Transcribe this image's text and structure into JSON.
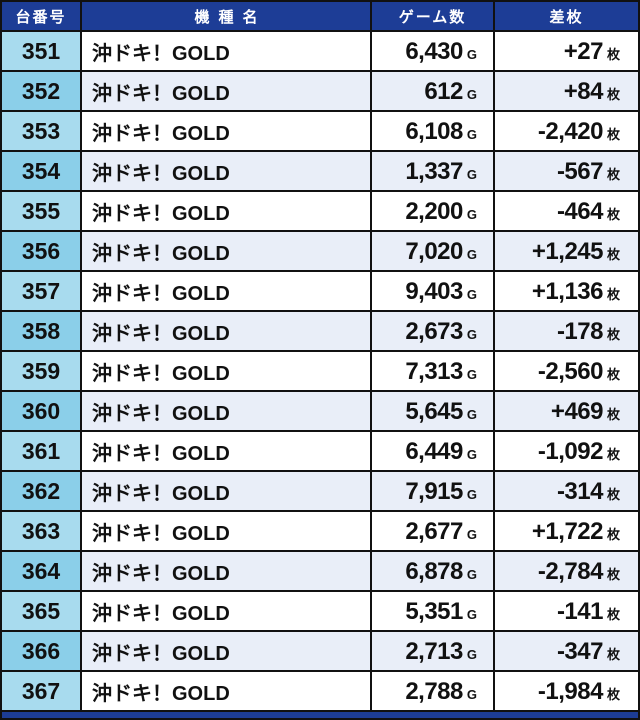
{
  "table": {
    "headers": {
      "machine_number": "台番号",
      "model_name": "機種名",
      "game_count": "ゲーム数",
      "diff_count": "差枚"
    },
    "units": {
      "game": "G",
      "diff": "枚"
    },
    "rows": [
      {
        "no": "351",
        "model": "沖ドキ！GOLD",
        "games": "6,430",
        "diff": "+27"
      },
      {
        "no": "352",
        "model": "沖ドキ！GOLD",
        "games": "612",
        "diff": "+84"
      },
      {
        "no": "353",
        "model": "沖ドキ！GOLD",
        "games": "6,108",
        "diff": "-2,420"
      },
      {
        "no": "354",
        "model": "沖ドキ！GOLD",
        "games": "1,337",
        "diff": "-567"
      },
      {
        "no": "355",
        "model": "沖ドキ！GOLD",
        "games": "2,200",
        "diff": "-464"
      },
      {
        "no": "356",
        "model": "沖ドキ！GOLD",
        "games": "7,020",
        "diff": "+1,245"
      },
      {
        "no": "357",
        "model": "沖ドキ！GOLD",
        "games": "9,403",
        "diff": "+1,136"
      },
      {
        "no": "358",
        "model": "沖ドキ！GOLD",
        "games": "2,673",
        "diff": "-178"
      },
      {
        "no": "359",
        "model": "沖ドキ！GOLD",
        "games": "7,313",
        "diff": "-2,560"
      },
      {
        "no": "360",
        "model": "沖ドキ！GOLD",
        "games": "5,645",
        "diff": "+469"
      },
      {
        "no": "361",
        "model": "沖ドキ！GOLD",
        "games": "6,449",
        "diff": "-1,092"
      },
      {
        "no": "362",
        "model": "沖ドキ！GOLD",
        "games": "7,915",
        "diff": "-314"
      },
      {
        "no": "363",
        "model": "沖ドキ！GOLD",
        "games": "2,677",
        "diff": "+1,722"
      },
      {
        "no": "364",
        "model": "沖ドキ！GOLD",
        "games": "6,878",
        "diff": "-2,784"
      },
      {
        "no": "365",
        "model": "沖ドキ！GOLD",
        "games": "5,351",
        "diff": "-141"
      },
      {
        "no": "366",
        "model": "沖ドキ！GOLD",
        "games": "2,713",
        "diff": "-347"
      },
      {
        "no": "367",
        "model": "沖ドキ！GOLD",
        "games": "2,788",
        "diff": "-1,984"
      }
    ]
  },
  "colors": {
    "header_bg": "#1d3d96",
    "header_text": "#ffffff",
    "row_odd_bg": "#ffffff",
    "row_even_bg": "#e9eef8",
    "num_odd_bg": "#a8dbee",
    "num_even_bg": "#8bcfe9",
    "border": "#111111",
    "body_text": "#111111"
  }
}
